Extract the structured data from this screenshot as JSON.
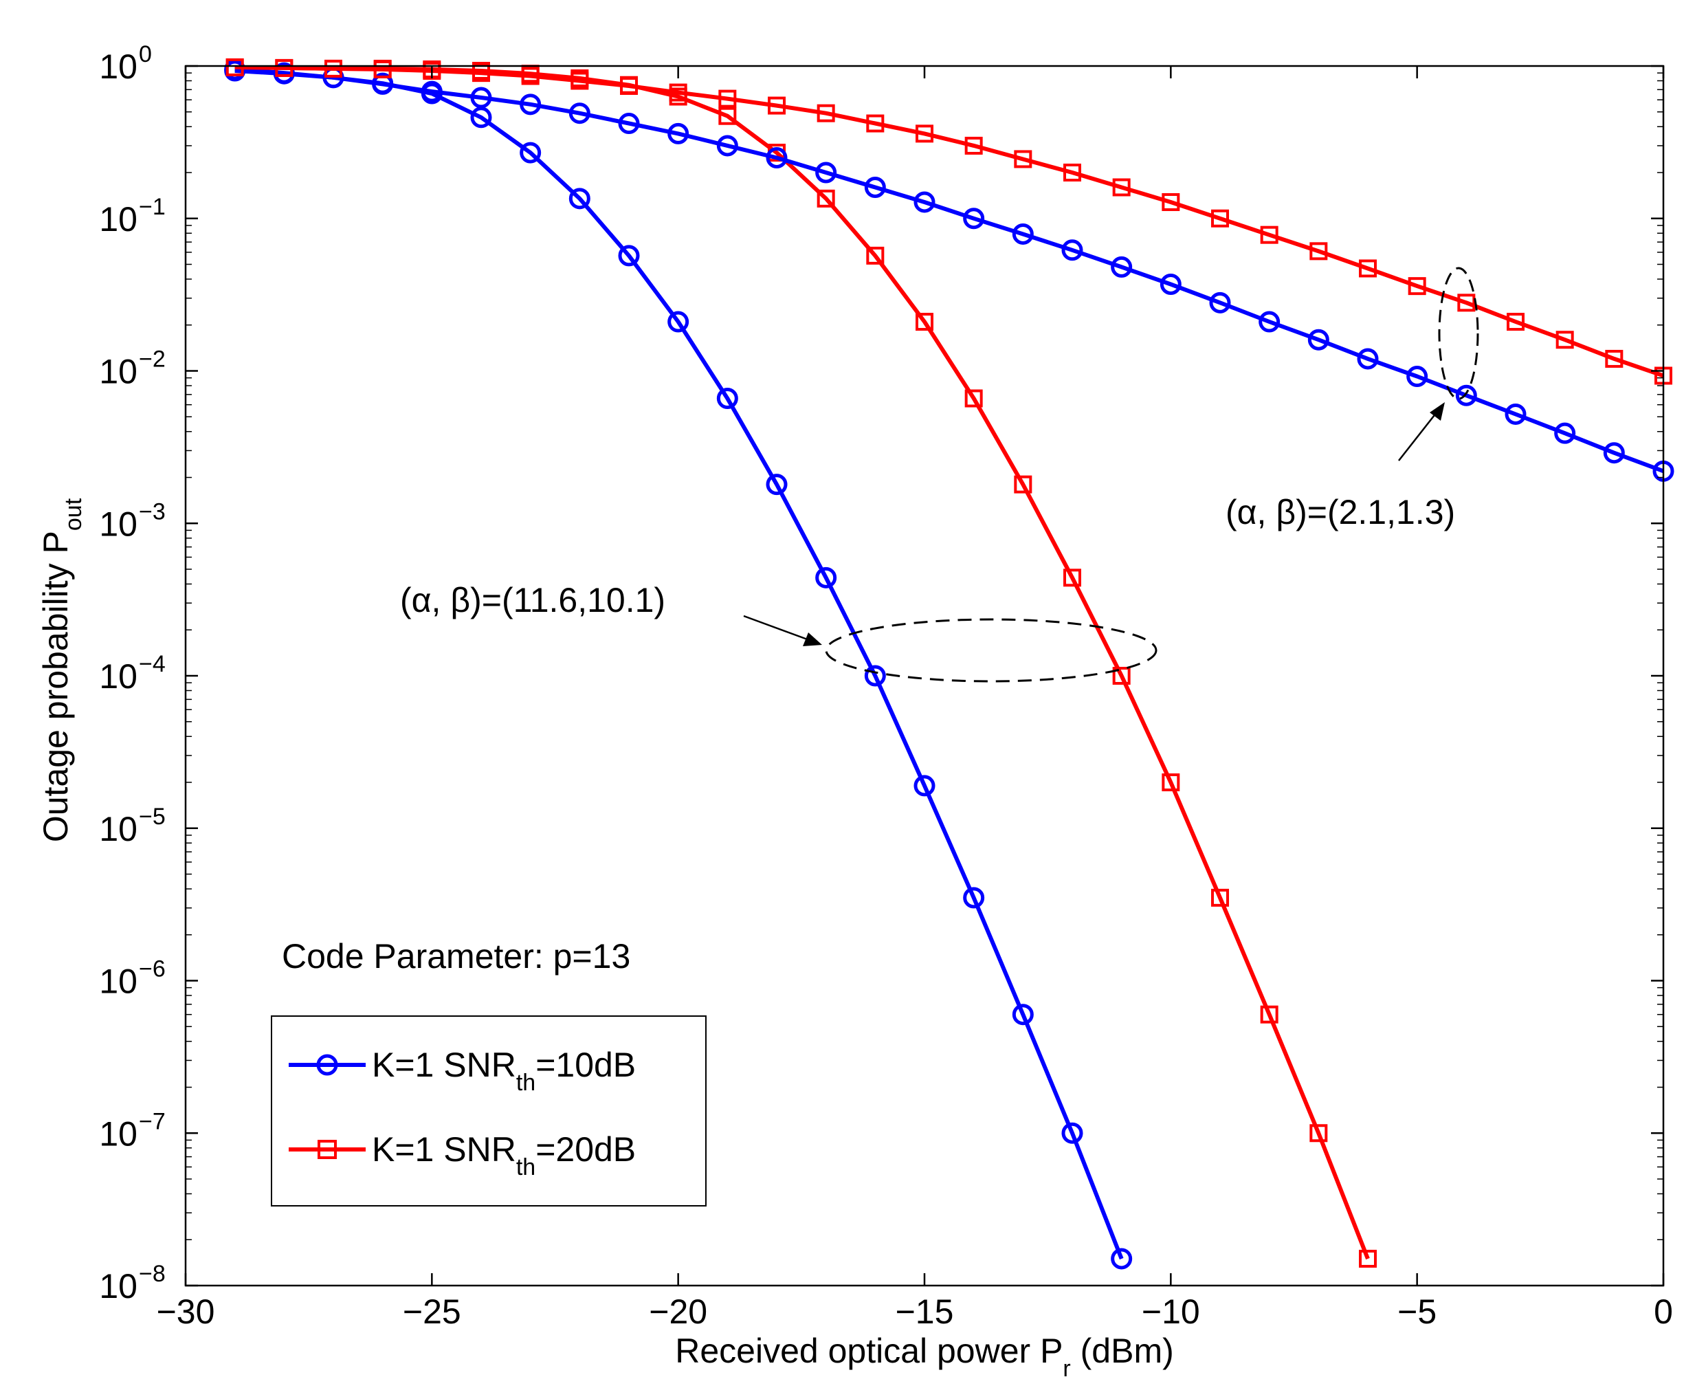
{
  "chart_data": {
    "type": "line",
    "yscale": "log",
    "xlabel": {
      "main": "Received optical power P",
      "sub": "r",
      "tail": " (dBm)"
    },
    "ylabel": {
      "main": "Outage probability P",
      "sub": "out"
    },
    "xlim": [
      -30,
      0
    ],
    "ylim": [
      1e-08,
      1
    ],
    "grid": false,
    "x_ticks": [
      {
        "value": -30,
        "label": "−30"
      },
      {
        "value": -25,
        "label": "−25"
      },
      {
        "value": -20,
        "label": "−20"
      },
      {
        "value": -15,
        "label": "−15"
      },
      {
        "value": -10,
        "label": "−10"
      },
      {
        "value": -5,
        "label": "−5"
      },
      {
        "value": 0,
        "label": "0"
      }
    ],
    "y_ticks": [
      {
        "exp": 0,
        "base": "10",
        "sup": "0"
      },
      {
        "exp": -1,
        "base": "10",
        "sup": "−1"
      },
      {
        "exp": -2,
        "base": "10",
        "sup": "−2"
      },
      {
        "exp": -3,
        "base": "10",
        "sup": "−3"
      },
      {
        "exp": -4,
        "base": "10",
        "sup": "−4"
      },
      {
        "exp": -5,
        "base": "10",
        "sup": "−5"
      },
      {
        "exp": -6,
        "base": "10",
        "sup": "−6"
      },
      {
        "exp": -7,
        "base": "10",
        "sup": "−7"
      },
      {
        "exp": -8,
        "base": "10",
        "sup": "−8"
      }
    ],
    "series": [
      {
        "name": "K=1 SNR_th=10dB, (α, β)=(11.6,10.1)",
        "color": "#0000ff",
        "marker": "circle",
        "x": [
          -29,
          -28,
          -27,
          -26,
          -25,
          -24,
          -23,
          -22,
          -21,
          -20,
          -19,
          -18,
          -17,
          -16,
          -15,
          -14,
          -13,
          -12,
          -11
        ],
        "y": [
          0.93,
          0.89,
          0.84,
          0.77,
          0.66,
          0.46,
          0.27,
          0.135,
          0.057,
          0.021,
          0.0066,
          0.0018,
          0.00044,
          0.0001,
          1.9e-05,
          3.5e-06,
          6e-07,
          1e-07,
          1.5e-08
        ]
      },
      {
        "name": "K=1 SNR_th=20dB, (α, β)=(11.6,10.1)",
        "color": "#ff0000",
        "marker": "square",
        "x": [
          -29,
          -28,
          -27,
          -26,
          -25,
          -24,
          -23,
          -22,
          -21,
          -20,
          -19,
          -18,
          -17,
          -16,
          -15,
          -14,
          -13,
          -12,
          -11,
          -10,
          -9,
          -8,
          -7,
          -6
        ],
        "y": [
          0.98,
          0.97,
          0.96,
          0.96,
          0.95,
          0.93,
          0.89,
          0.83,
          0.75,
          0.63,
          0.47,
          0.27,
          0.135,
          0.057,
          0.021,
          0.0066,
          0.0018,
          0.00044,
          0.0001,
          2e-05,
          3.5e-06,
          6e-07,
          1e-07,
          1.5e-08
        ]
      },
      {
        "name": "K=1 SNR_th=10dB, (α, β)=(2.1,1.3)",
        "color": "#0000ff",
        "marker": "circle",
        "x": [
          -29,
          -28,
          -27,
          -26,
          -25,
          -24,
          -23,
          -22,
          -21,
          -20,
          -19,
          -18,
          -17,
          -16,
          -15,
          -14,
          -13,
          -12,
          -11,
          -10,
          -9,
          -8,
          -7,
          -6,
          -5,
          -4,
          -3,
          -2,
          -1,
          0
        ],
        "y": [
          0.95,
          0.9,
          0.84,
          0.76,
          0.68,
          0.62,
          0.56,
          0.49,
          0.42,
          0.36,
          0.3,
          0.25,
          0.2,
          0.16,
          0.128,
          0.1,
          0.079,
          0.062,
          0.048,
          0.037,
          0.028,
          0.021,
          0.016,
          0.012,
          0.0092,
          0.0069,
          0.0052,
          0.0039,
          0.0029,
          0.0022
        ]
      },
      {
        "name": "K=1 SNR_th=20dB, (α, β)=(2.1,1.3)",
        "color": "#ff0000",
        "marker": "square",
        "x": [
          -29,
          -28,
          -27,
          -26,
          -25,
          -24,
          -23,
          -22,
          -21,
          -20,
          -19,
          -18,
          -17,
          -16,
          -15,
          -14,
          -13,
          -12,
          -11,
          -10,
          -9,
          -8,
          -7,
          -6,
          -5,
          -4,
          -3,
          -2,
          -1,
          0
        ],
        "y": [
          0.98,
          0.97,
          0.96,
          0.95,
          0.93,
          0.9,
          0.86,
          0.8,
          0.74,
          0.67,
          0.61,
          0.55,
          0.49,
          0.42,
          0.36,
          0.3,
          0.245,
          0.2,
          0.16,
          0.128,
          0.1,
          0.078,
          0.061,
          0.047,
          0.036,
          0.028,
          0.021,
          0.016,
          0.012,
          0.0093
        ]
      }
    ],
    "annotations": [
      {
        "id": "steep",
        "text": "(α, β)=(11.6,10.1)"
      },
      {
        "id": "shallow",
        "text": "(α, β)=(2.1,1.3)"
      },
      {
        "id": "code",
        "text": "Code Parameter: p=13"
      }
    ],
    "legend": {
      "placement": "bottom-left",
      "entries": [
        {
          "pre": "K=1 SNR",
          "sub": "th",
          "post": "=10dB",
          "color": "#0000ff",
          "marker": "circle"
        },
        {
          "pre": "K=1 SNR",
          "sub": "th",
          "post": "=20dB",
          "color": "#ff0000",
          "marker": "square"
        }
      ]
    }
  }
}
